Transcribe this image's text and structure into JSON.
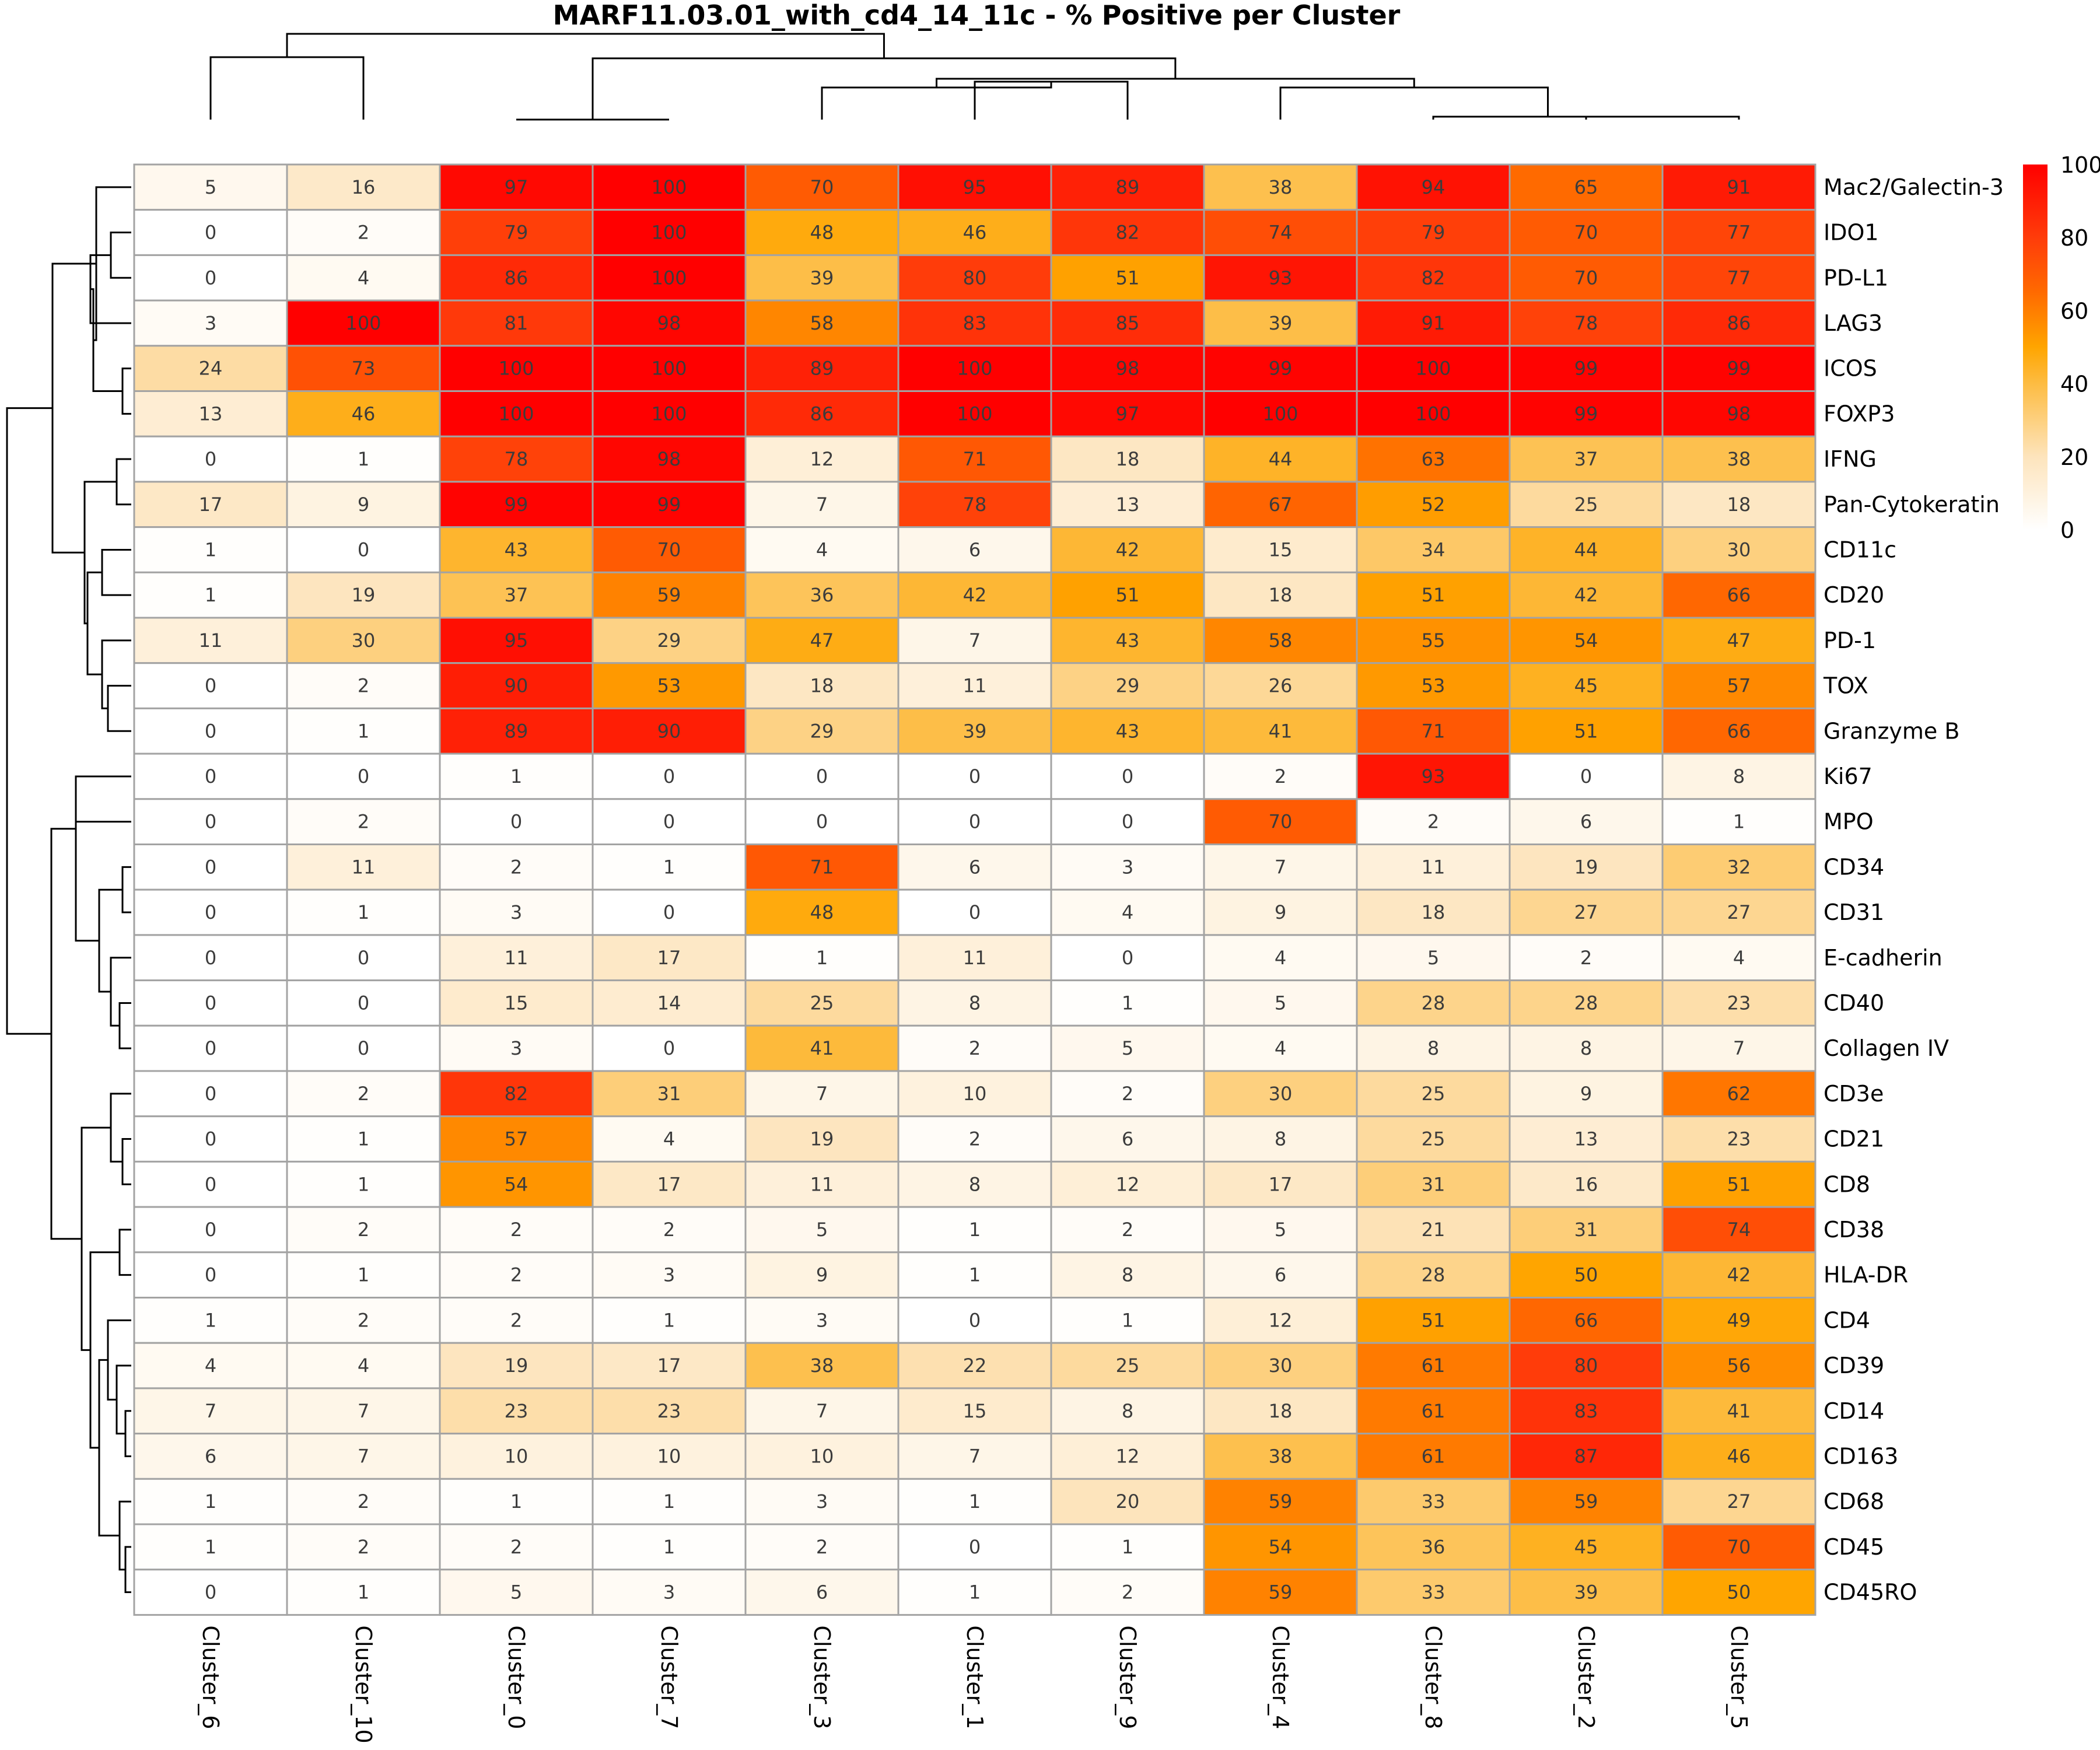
{
  "chart_data": {
    "type": "heatmap",
    "title": "MARF11.03.01_with_cd4_14_11c - % Positive per Cluster",
    "columns": [
      "Cluster_6",
      "Cluster_10",
      "Cluster_0",
      "Cluster_7",
      "Cluster_3",
      "Cluster_1",
      "Cluster_9",
      "Cluster_4",
      "Cluster_8",
      "Cluster_2",
      "Cluster_5"
    ],
    "rows": [
      "Mac2/Galectin-3",
      "IDO1",
      "PD-L1",
      "LAG3",
      "ICOS",
      "FOXP3",
      "IFNG",
      "Pan-Cytokeratin",
      "CD11c",
      "CD20",
      "PD-1",
      "TOX",
      "Granzyme B",
      "Ki67",
      "MPO",
      "CD34",
      "CD31",
      "E-cadherin",
      "CD40",
      "Collagen IV",
      "CD3e",
      "CD21",
      "CD8",
      "CD38",
      "HLA-DR",
      "CD4",
      "CD39",
      "CD14",
      "CD163",
      "CD68",
      "CD45",
      "CD45RO"
    ],
    "values": [
      [
        5,
        16,
        97,
        100,
        70,
        95,
        89,
        38,
        94,
        65,
        91
      ],
      [
        0,
        2,
        79,
        100,
        48,
        46,
        82,
        74,
        79,
        70,
        77
      ],
      [
        0,
        4,
        86,
        100,
        39,
        80,
        51,
        93,
        82,
        70,
        77
      ],
      [
        3,
        100,
        81,
        98,
        58,
        83,
        85,
        39,
        91,
        78,
        86
      ],
      [
        24,
        73,
        100,
        100,
        89,
        100,
        98,
        99,
        100,
        99,
        99
      ],
      [
        13,
        46,
        100,
        100,
        86,
        100,
        97,
        100,
        100,
        99,
        98
      ],
      [
        0,
        1,
        78,
        98,
        12,
        71,
        18,
        44,
        63,
        37,
        38
      ],
      [
        17,
        9,
        99,
        99,
        7,
        78,
        13,
        67,
        52,
        25,
        18
      ],
      [
        1,
        0,
        43,
        70,
        4,
        6,
        42,
        15,
        34,
        44,
        30
      ],
      [
        1,
        19,
        37,
        59,
        36,
        42,
        51,
        18,
        51,
        42,
        66
      ],
      [
        11,
        30,
        95,
        29,
        47,
        7,
        43,
        58,
        55,
        54,
        47
      ],
      [
        0,
        2,
        90,
        53,
        18,
        11,
        29,
        26,
        53,
        45,
        57
      ],
      [
        0,
        1,
        89,
        90,
        29,
        39,
        43,
        41,
        71,
        51,
        66
      ],
      [
        0,
        0,
        1,
        0,
        0,
        0,
        0,
        2,
        93,
        0,
        8
      ],
      [
        0,
        2,
        0,
        0,
        0,
        0,
        0,
        70,
        2,
        6,
        1
      ],
      [
        0,
        11,
        2,
        1,
        71,
        6,
        3,
        7,
        11,
        19,
        32
      ],
      [
        0,
        1,
        3,
        0,
        48,
        0,
        4,
        9,
        18,
        27,
        27
      ],
      [
        0,
        0,
        11,
        17,
        1,
        11,
        0,
        4,
        5,
        2,
        4
      ],
      [
        0,
        0,
        15,
        14,
        25,
        8,
        1,
        5,
        28,
        28,
        23
      ],
      [
        0,
        0,
        3,
        0,
        41,
        2,
        5,
        4,
        8,
        8,
        7
      ],
      [
        0,
        2,
        82,
        31,
        7,
        10,
        2,
        30,
        25,
        9,
        62
      ],
      [
        0,
        1,
        57,
        4,
        19,
        2,
        6,
        8,
        25,
        13,
        23
      ],
      [
        0,
        1,
        54,
        17,
        11,
        8,
        12,
        17,
        31,
        16,
        51
      ],
      [
        0,
        2,
        2,
        2,
        5,
        1,
        2,
        5,
        21,
        31,
        74
      ],
      [
        0,
        1,
        2,
        3,
        9,
        1,
        8,
        6,
        28,
        50,
        42
      ],
      [
        1,
        2,
        2,
        1,
        3,
        0,
        1,
        12,
        51,
        66,
        49
      ],
      [
        4,
        4,
        19,
        17,
        38,
        22,
        25,
        30,
        61,
        80,
        56
      ],
      [
        7,
        7,
        23,
        23,
        7,
        15,
        8,
        18,
        61,
        83,
        41
      ],
      [
        6,
        7,
        10,
        10,
        10,
        7,
        12,
        38,
        61,
        87,
        46
      ],
      [
        1,
        2,
        1,
        1,
        3,
        1,
        20,
        59,
        33,
        59,
        27
      ],
      [
        1,
        2,
        2,
        1,
        2,
        0,
        1,
        54,
        36,
        45,
        70
      ],
      [
        0,
        1,
        5,
        3,
        6,
        1,
        2,
        59,
        33,
        39,
        50
      ]
    ],
    "color_scale": {
      "min": 0,
      "max": 100,
      "stops": [
        {
          "value": 0,
          "color": "#ffffff"
        },
        {
          "value": 20,
          "color": "#fde4bc"
        },
        {
          "value": 40,
          "color": "#fdbc42"
        },
        {
          "value": 50,
          "color": "#ffa500"
        },
        {
          "value": 65,
          "color": "#ff6a00"
        },
        {
          "value": 80,
          "color": "#ff3c0a"
        },
        {
          "value": 100,
          "color": "#ff0000"
        }
      ]
    },
    "legend": {
      "ticks": [
        0,
        20,
        40,
        60,
        80,
        100
      ],
      "position": "top-right"
    },
    "col_dendrogram": {
      "merges": [
        [
          2,
          3
        ],
        [
          9,
          10
        ],
        [
          8,
          "9-10"
        ],
        [
          7,
          "8-10"
        ],
        [
          5,
          6
        ],
        [
          4,
          "5-6"
        ],
        [
          "4-6",
          "7-10"
        ],
        [
          "2-3",
          "4-10"
        ],
        [
          0,
          1
        ],
        [
          "0-1",
          "2-10"
        ]
      ]
    },
    "row_dendrogram": {
      "description": "hierarchical clustering of markers",
      "shown": true
    }
  }
}
